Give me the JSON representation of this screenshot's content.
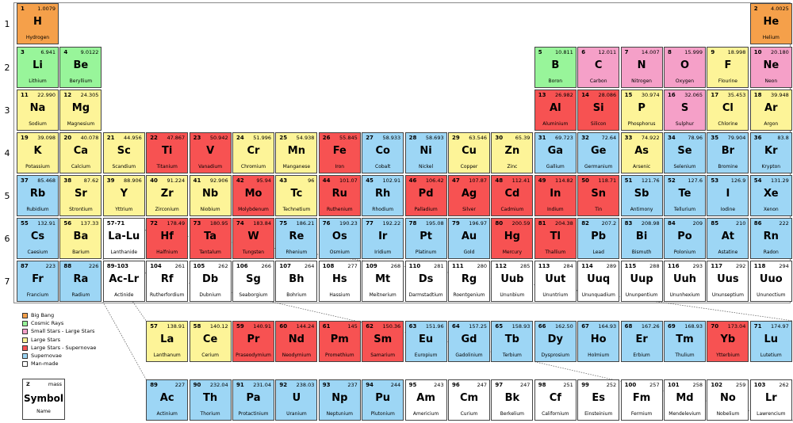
{
  "colors": {
    "big_bang": "#f5a04a",
    "cosmic_rays": "#98f59a",
    "small_stars": "#f5a0c8",
    "large_stars": "#fdf498",
    "supernova_large": "#f75252",
    "supernova": "#9dd6f5",
    "man_made": "#ffffff"
  },
  "row_labels": [
    "1",
    "2",
    "3",
    "4",
    "5",
    "6",
    "7"
  ],
  "legend": [
    {
      "label": "Big Bang",
      "color_key": "big_bang"
    },
    {
      "label": "Cosmic Rays",
      "color_key": "cosmic_rays"
    },
    {
      "label": "Small Stars - Large Stars",
      "color_key": "small_stars"
    },
    {
      "label": "Large Stars",
      "color_key": "large_stars"
    },
    {
      "label": "Large Stars - Supernovae",
      "color_key": "supernova_large"
    },
    {
      "label": "Supernovae",
      "color_key": "supernova"
    },
    {
      "label": "Man-made",
      "color_key": "man_made"
    }
  ],
  "key": {
    "z": "Z",
    "mass": "mass",
    "symbol": "Symbol",
    "name": "Name"
  },
  "elements": [
    {
      "n": "1",
      "sym": "H",
      "name": "Hydrogen",
      "mass": "1.0079",
      "row": 1,
      "col": 1,
      "c": "big_bang"
    },
    {
      "n": "2",
      "sym": "He",
      "name": "Helium",
      "mass": "4.0025",
      "row": 1,
      "col": 18,
      "c": "big_bang"
    },
    {
      "n": "3",
      "sym": "Li",
      "name": "Lithium",
      "mass": "6.941",
      "row": 2,
      "col": 1,
      "c": "cosmic_rays"
    },
    {
      "n": "4",
      "sym": "Be",
      "name": "Beryllium",
      "mass": "9.0122",
      "row": 2,
      "col": 2,
      "c": "cosmic_rays"
    },
    {
      "n": "5",
      "sym": "B",
      "name": "Boron",
      "mass": "10.811",
      "row": 2,
      "col": 13,
      "c": "cosmic_rays"
    },
    {
      "n": "6",
      "sym": "C",
      "name": "Carbon",
      "mass": "12.011",
      "row": 2,
      "col": 14,
      "c": "small_stars"
    },
    {
      "n": "7",
      "sym": "N",
      "name": "Nitrogen",
      "mass": "14.007",
      "row": 2,
      "col": 15,
      "c": "small_stars"
    },
    {
      "n": "8",
      "sym": "O",
      "name": "Oxygen",
      "mass": "15.999",
      "row": 2,
      "col": 16,
      "c": "small_stars"
    },
    {
      "n": "9",
      "sym": "F",
      "name": "Flourine",
      "mass": "18.998",
      "row": 2,
      "col": 17,
      "c": "large_stars"
    },
    {
      "n": "10",
      "sym": "Ne",
      "name": "Neon",
      "mass": "20.180",
      "row": 2,
      "col": 18,
      "c": "small_stars"
    },
    {
      "n": "11",
      "sym": "Na",
      "name": "Sodium",
      "mass": "22.990",
      "row": 3,
      "col": 1,
      "c": "large_stars"
    },
    {
      "n": "12",
      "sym": "Mg",
      "name": "Magnesium",
      "mass": "24.305",
      "row": 3,
      "col": 2,
      "c": "large_stars"
    },
    {
      "n": "13",
      "sym": "Al",
      "name": "Aluminium",
      "mass": "26.982",
      "row": 3,
      "col": 13,
      "c": "supernova_large"
    },
    {
      "n": "14",
      "sym": "Si",
      "name": "Silicon",
      "mass": "28.086",
      "row": 3,
      "col": 14,
      "c": "supernova_large"
    },
    {
      "n": "15",
      "sym": "P",
      "name": "Phosphorus",
      "mass": "30.974",
      "row": 3,
      "col": 15,
      "c": "large_stars"
    },
    {
      "n": "16",
      "sym": "S",
      "name": "Sulphur",
      "mass": "32.065",
      "row": 3,
      "col": 16,
      "c": "small_stars"
    },
    {
      "n": "17",
      "sym": "Cl",
      "name": "Chlorine",
      "mass": "35.453",
      "row": 3,
      "col": 17,
      "c": "large_stars"
    },
    {
      "n": "18",
      "sym": "Ar",
      "name": "Argon",
      "mass": "39.948",
      "row": 3,
      "col": 18,
      "c": "large_stars"
    },
    {
      "n": "19",
      "sym": "K",
      "name": "Potassium",
      "mass": "39.098",
      "row": 4,
      "col": 1,
      "c": "large_stars"
    },
    {
      "n": "20",
      "sym": "Ca",
      "name": "Calcium",
      "mass": "40.078",
      "row": 4,
      "col": 2,
      "c": "large_stars"
    },
    {
      "n": "21",
      "sym": "Sc",
      "name": "Scandium",
      "mass": "44.956",
      "row": 4,
      "col": 3,
      "c": "large_stars"
    },
    {
      "n": "22",
      "sym": "Ti",
      "name": "Titanium",
      "mass": "47.867",
      "row": 4,
      "col": 4,
      "c": "supernova_large"
    },
    {
      "n": "23",
      "sym": "V",
      "name": "Vanadium",
      "mass": "50.942",
      "row": 4,
      "col": 5,
      "c": "supernova_large"
    },
    {
      "n": "24",
      "sym": "Cr",
      "name": "Chromium",
      "mass": "51.996",
      "row": 4,
      "col": 6,
      "c": "large_stars"
    },
    {
      "n": "25",
      "sym": "Mn",
      "name": "Manganese",
      "mass": "54.938",
      "row": 4,
      "col": 7,
      "c": "large_stars"
    },
    {
      "n": "26",
      "sym": "Fe",
      "name": "Iron",
      "mass": "55.845",
      "row": 4,
      "col": 8,
      "c": "supernova_large"
    },
    {
      "n": "27",
      "sym": "Co",
      "name": "Cobalt",
      "mass": "58.933",
      "row": 4,
      "col": 9,
      "c": "supernova"
    },
    {
      "n": "28",
      "sym": "Ni",
      "name": "Nickel",
      "mass": "58.693",
      "row": 4,
      "col": 10,
      "c": "supernova"
    },
    {
      "n": "29",
      "sym": "Cu",
      "name": "Copper",
      "mass": "63.546",
      "row": 4,
      "col": 11,
      "c": "large_stars"
    },
    {
      "n": "30",
      "sym": "Zn",
      "name": "Zinc",
      "mass": "65.39",
      "row": 4,
      "col": 12,
      "c": "large_stars"
    },
    {
      "n": "31",
      "sym": "Ga",
      "name": "Gallium",
      "mass": "69.723",
      "row": 4,
      "col": 13,
      "c": "supernova"
    },
    {
      "n": "32",
      "sym": "Ge",
      "name": "Germanium",
      "mass": "72.64",
      "row": 4,
      "col": 14,
      "c": "supernova"
    },
    {
      "n": "33",
      "sym": "As",
      "name": "Arsenic",
      "mass": "74.922",
      "row": 4,
      "col": 15,
      "c": "large_stars"
    },
    {
      "n": "34",
      "sym": "Se",
      "name": "Selenium",
      "mass": "78.96",
      "row": 4,
      "col": 16,
      "c": "supernova"
    },
    {
      "n": "35",
      "sym": "Br",
      "name": "Bromine",
      "mass": "79.904",
      "row": 4,
      "col": 17,
      "c": "supernova"
    },
    {
      "n": "36",
      "sym": "Kr",
      "name": "Krypton",
      "mass": "83.8",
      "row": 4,
      "col": 18,
      "c": "supernova"
    },
    {
      "n": "37",
      "sym": "Rb",
      "name": "Rubidium",
      "mass": "85.468",
      "row": 5,
      "col": 1,
      "c": "supernova"
    },
    {
      "n": "38",
      "sym": "Sr",
      "name": "Strontium",
      "mass": "87.62",
      "row": 5,
      "col": 2,
      "c": "large_stars"
    },
    {
      "n": "39",
      "sym": "Y",
      "name": "Yttrium",
      "mass": "88.906",
      "row": 5,
      "col": 3,
      "c": "large_stars"
    },
    {
      "n": "40",
      "sym": "Zr",
      "name": "Zirconium",
      "mass": "91.224",
      "row": 5,
      "col": 4,
      "c": "large_stars"
    },
    {
      "n": "41",
      "sym": "Nb",
      "name": "Niobium",
      "mass": "92.906",
      "row": 5,
      "col": 5,
      "c": "large_stars"
    },
    {
      "n": "42",
      "sym": "Mo",
      "name": "Molybdenum",
      "mass": "95.94",
      "row": 5,
      "col": 6,
      "c": "supernova_large"
    },
    {
      "n": "43",
      "sym": "Tc",
      "name": "Technetium",
      "mass": "96",
      "row": 5,
      "col": 7,
      "c": "large_stars"
    },
    {
      "n": "44",
      "sym": "Ru",
      "name": "Ruthenium",
      "mass": "101.07",
      "row": 5,
      "col": 8,
      "c": "supernova_large"
    },
    {
      "n": "45",
      "sym": "Rh",
      "name": "Rhodium",
      "mass": "102.91",
      "row": 5,
      "col": 9,
      "c": "supernova"
    },
    {
      "n": "46",
      "sym": "Pd",
      "name": "Palladium",
      "mass": "106.42",
      "row": 5,
      "col": 10,
      "c": "supernova_large"
    },
    {
      "n": "47",
      "sym": "Ag",
      "name": "Silver",
      "mass": "107.87",
      "row": 5,
      "col": 11,
      "c": "supernova_large"
    },
    {
      "n": "48",
      "sym": "Cd",
      "name": "Cadmium",
      "mass": "112.41",
      "row": 5,
      "col": 12,
      "c": "supernova_large"
    },
    {
      "n": "49",
      "sym": "In",
      "name": "Indium",
      "mass": "114.82",
      "row": 5,
      "col": 13,
      "c": "supernova_large"
    },
    {
      "n": "50",
      "sym": "Sn",
      "name": "Tin",
      "mass": "118.71",
      "row": 5,
      "col": 14,
      "c": "supernova_large"
    },
    {
      "n": "51",
      "sym": "Sb",
      "name": "Antimony",
      "mass": "121.76",
      "row": 5,
      "col": 15,
      "c": "supernova"
    },
    {
      "n": "52",
      "sym": "Te",
      "name": "Tellurium",
      "mass": "127.6",
      "row": 5,
      "col": 16,
      "c": "supernova"
    },
    {
      "n": "53",
      "sym": "I",
      "name": "Iodine",
      "mass": "126.9",
      "row": 5,
      "col": 17,
      "c": "supernova"
    },
    {
      "n": "54",
      "sym": "Xe",
      "name": "Xenon",
      "mass": "131.29",
      "row": 5,
      "col": 18,
      "c": "supernova"
    },
    {
      "n": "55",
      "sym": "Cs",
      "name": "Caesium",
      "mass": "132.91",
      "row": 6,
      "col": 1,
      "c": "supernova"
    },
    {
      "n": "56",
      "sym": "Ba",
      "name": "Barium",
      "mass": "137.33",
      "row": 6,
      "col": 2,
      "c": "large_stars"
    },
    {
      "n": "57-71",
      "sym": "La-Lu",
      "name": "Lanthanide",
      "mass": "",
      "row": 6,
      "col": 3,
      "c": "man_made"
    },
    {
      "n": "72",
      "sym": "Hf",
      "name": "Halfnium",
      "mass": "178.49",
      "row": 6,
      "col": 4,
      "c": "supernova_large"
    },
    {
      "n": "73",
      "sym": "Ta",
      "name": "Tantalum",
      "mass": "180.95",
      "row": 6,
      "col": 5,
      "c": "supernova_large"
    },
    {
      "n": "74",
      "sym": "W",
      "name": "Tungsten",
      "mass": "183.84",
      "row": 6,
      "col": 6,
      "c": "supernova_large"
    },
    {
      "n": "75",
      "sym": "Re",
      "name": "Rhenium",
      "mass": "186.21",
      "row": 6,
      "col": 7,
      "c": "supernova"
    },
    {
      "n": "76",
      "sym": "Os",
      "name": "Osmium",
      "mass": "190.23",
      "row": 6,
      "col": 8,
      "c": "supernova"
    },
    {
      "n": "77",
      "sym": "Ir",
      "name": "Iridium",
      "mass": "192.22",
      "row": 6,
      "col": 9,
      "c": "supernova"
    },
    {
      "n": "78",
      "sym": "Pt",
      "name": "Platinum",
      "mass": "195.08",
      "row": 6,
      "col": 10,
      "c": "supernova"
    },
    {
      "n": "79",
      "sym": "Au",
      "name": "Gold",
      "mass": "196.97",
      "row": 6,
      "col": 11,
      "c": "supernova"
    },
    {
      "n": "80",
      "sym": "Hg",
      "name": "Mercury",
      "mass": "200.59",
      "row": 6,
      "col": 12,
      "c": "supernova_large"
    },
    {
      "n": "81",
      "sym": "Tl",
      "name": "Thallium",
      "mass": "204.38",
      "row": 6,
      "col": 13,
      "c": "supernova_large"
    },
    {
      "n": "82",
      "sym": "Pb",
      "name": "Lead",
      "mass": "207.2",
      "row": 6,
      "col": 14,
      "c": "supernova"
    },
    {
      "n": "83",
      "sym": "Bi",
      "name": "Bismuth",
      "mass": "208.98",
      "row": 6,
      "col": 15,
      "c": "supernova"
    },
    {
      "n": "84",
      "sym": "Po",
      "name": "Polonium",
      "mass": "209",
      "row": 6,
      "col": 16,
      "c": "supernova"
    },
    {
      "n": "85",
      "sym": "At",
      "name": "Astatine",
      "mass": "210",
      "row": 6,
      "col": 17,
      "c": "supernova"
    },
    {
      "n": "86",
      "sym": "Rn",
      "name": "Radon",
      "mass": "222",
      "row": 6,
      "col": 18,
      "c": "supernova"
    },
    {
      "n": "87",
      "sym": "Fr",
      "name": "Francium",
      "mass": "223",
      "row": 7,
      "col": 1,
      "c": "supernova"
    },
    {
      "n": "88",
      "sym": "Ra",
      "name": "Radium",
      "mass": "226",
      "row": 7,
      "col": 2,
      "c": "supernova"
    },
    {
      "n": "89-103",
      "sym": "Ac-Lr",
      "name": "Actinide",
      "mass": "",
      "row": 7,
      "col": 3,
      "c": "man_made"
    },
    {
      "n": "104",
      "sym": "Rf",
      "name": "Rutherfordium",
      "mass": "261",
      "row": 7,
      "col": 4,
      "c": "man_made"
    },
    {
      "n": "105",
      "sym": "Db",
      "name": "Dubnium",
      "mass": "262",
      "row": 7,
      "col": 5,
      "c": "man_made"
    },
    {
      "n": "106",
      "sym": "Sg",
      "name": "Seaborgium",
      "mass": "266",
      "row": 7,
      "col": 6,
      "c": "man_made"
    },
    {
      "n": "107",
      "sym": "Bh",
      "name": "Bohrium",
      "mass": "264",
      "row": 7,
      "col": 7,
      "c": "man_made"
    },
    {
      "n": "108",
      "sym": "Hs",
      "name": "Hassium",
      "mass": "277",
      "row": 7,
      "col": 8,
      "c": "man_made"
    },
    {
      "n": "109",
      "sym": "Mt",
      "name": "Meitnerium",
      "mass": "268",
      "row": 7,
      "col": 9,
      "c": "man_made"
    },
    {
      "n": "110",
      "sym": "Ds",
      "name": "Darmstadtium",
      "mass": "281",
      "row": 7,
      "col": 10,
      "c": "man_made"
    },
    {
      "n": "111",
      "sym": "Rg",
      "name": "Roentgenium",
      "mass": "280",
      "row": 7,
      "col": 11,
      "c": "man_made"
    },
    {
      "n": "112",
      "sym": "Uub",
      "name": "Ununbium",
      "mass": "285",
      "row": 7,
      "col": 12,
      "c": "man_made"
    },
    {
      "n": "113",
      "sym": "Uut",
      "name": "Ununtrium",
      "mass": "284",
      "row": 7,
      "col": 13,
      "c": "man_made"
    },
    {
      "n": "114",
      "sym": "Uuq",
      "name": "Ununquadium",
      "mass": "289",
      "row": 7,
      "col": 14,
      "c": "man_made"
    },
    {
      "n": "115",
      "sym": "Uup",
      "name": "Ununpentium",
      "mass": "288",
      "row": 7,
      "col": 15,
      "c": "man_made"
    },
    {
      "n": "116",
      "sym": "Uuh",
      "name": "Ununhexium",
      "mass": "293",
      "row": 7,
      "col": 16,
      "c": "man_made"
    },
    {
      "n": "117",
      "sym": "Uus",
      "name": "Ununseptium",
      "mass": "292",
      "row": 7,
      "col": 17,
      "c": "man_made"
    },
    {
      "n": "118",
      "sym": "Uuo",
      "name": "Ununoctium",
      "mass": "294",
      "row": 7,
      "col": 18,
      "c": "man_made"
    },
    {
      "n": "57",
      "sym": "La",
      "name": "Lanthanum",
      "mass": "138.91",
      "row": 9,
      "col": 4,
      "c": "large_stars"
    },
    {
      "n": "58",
      "sym": "Ce",
      "name": "Cerium",
      "mass": "140.12",
      "row": 9,
      "col": 5,
      "c": "large_stars"
    },
    {
      "n": "59",
      "sym": "Pr",
      "name": "Praseodymium",
      "mass": "140.91",
      "row": 9,
      "col": 6,
      "c": "supernova_large"
    },
    {
      "n": "60",
      "sym": "Nd",
      "name": "Neodymium",
      "mass": "144.24",
      "row": 9,
      "col": 7,
      "c": "supernova_large"
    },
    {
      "n": "61",
      "sym": "Pm",
      "name": "Promethium",
      "mass": "145",
      "row": 9,
      "col": 8,
      "c": "supernova_large"
    },
    {
      "n": "62",
      "sym": "Sm",
      "name": "Samarium",
      "mass": "150.36",
      "row": 9,
      "col": 9,
      "c": "supernova_large"
    },
    {
      "n": "63",
      "sym": "Eu",
      "name": "Europium",
      "mass": "151.96",
      "row": 9,
      "col": 10,
      "c": "supernova"
    },
    {
      "n": "64",
      "sym": "Gd",
      "name": "Gadolinium",
      "mass": "157.25",
      "row": 9,
      "col": 11,
      "c": "supernova"
    },
    {
      "n": "65",
      "sym": "Tb",
      "name": "Terbium",
      "mass": "158.93",
      "row": 9,
      "col": 12,
      "c": "supernova"
    },
    {
      "n": "66",
      "sym": "Dy",
      "name": "Dysprosium",
      "mass": "162.50",
      "row": 9,
      "col": 13,
      "c": "supernova"
    },
    {
      "n": "67",
      "sym": "Ho",
      "name": "Holmium",
      "mass": "164.93",
      "row": 9,
      "col": 14,
      "c": "supernova"
    },
    {
      "n": "68",
      "sym": "Er",
      "name": "Erbium",
      "mass": "167.26",
      "row": 9,
      "col": 15,
      "c": "supernova"
    },
    {
      "n": "69",
      "sym": "Tm",
      "name": "Thulium",
      "mass": "168.93",
      "row": 9,
      "col": 16,
      "c": "supernova"
    },
    {
      "n": "70",
      "sym": "Yb",
      "name": "Ytterbium",
      "mass": "173.04",
      "row": 9,
      "col": 17,
      "c": "supernova_large"
    },
    {
      "n": "71",
      "sym": "Lu",
      "name": "Lutetium",
      "mass": "174.97",
      "row": 9,
      "col": 18,
      "c": "supernova"
    },
    {
      "n": "89",
      "sym": "Ac",
      "name": "Actinium",
      "mass": "227",
      "row": 10,
      "col": 4,
      "c": "supernova"
    },
    {
      "n": "90",
      "sym": "Th",
      "name": "Thorium",
      "mass": "232.04",
      "row": 10,
      "col": 5,
      "c": "supernova"
    },
    {
      "n": "91",
      "sym": "Pa",
      "name": "Protactinium",
      "mass": "231.04",
      "row": 10,
      "col": 6,
      "c": "supernova"
    },
    {
      "n": "92",
      "sym": "U",
      "name": "Uranium",
      "mass": "238.03",
      "row": 10,
      "col": 7,
      "c": "supernova"
    },
    {
      "n": "93",
      "sym": "Np",
      "name": "Neptunium",
      "mass": "237",
      "row": 10,
      "col": 8,
      "c": "supernova"
    },
    {
      "n": "94",
      "sym": "Pu",
      "name": "Plutonium",
      "mass": "244",
      "row": 10,
      "col": 9,
      "c": "supernova"
    },
    {
      "n": "95",
      "sym": "Am",
      "name": "Americium",
      "mass": "243",
      "row": 10,
      "col": 10,
      "c": "man_made"
    },
    {
      "n": "96",
      "sym": "Cm",
      "name": "Curium",
      "mass": "247",
      "row": 10,
      "col": 11,
      "c": "man_made"
    },
    {
      "n": "97",
      "sym": "Bk",
      "name": "Berkelium",
      "mass": "247",
      "row": 10,
      "col": 12,
      "c": "man_made"
    },
    {
      "n": "98",
      "sym": "Cf",
      "name": "Californium",
      "mass": "251",
      "row": 10,
      "col": 13,
      "c": "man_made"
    },
    {
      "n": "99",
      "sym": "Es",
      "name": "Einsteinium",
      "mass": "252",
      "row": 10,
      "col": 14,
      "c": "man_made"
    },
    {
      "n": "100",
      "sym": "Fm",
      "name": "Fermium",
      "mass": "257",
      "row": 10,
      "col": 15,
      "c": "man_made"
    },
    {
      "n": "101",
      "sym": "Md",
      "name": "Mendelevium",
      "mass": "258",
      "row": 10,
      "col": 16,
      "c": "man_made"
    },
    {
      "n": "102",
      "sym": "No",
      "name": "Nobelium",
      "mass": "259",
      "row": 10,
      "col": 17,
      "c": "man_made"
    },
    {
      "n": "103",
      "sym": "Lr",
      "name": "Lawrencium",
      "mass": "262",
      "row": 10,
      "col": 18,
      "c": "man_made"
    }
  ]
}
